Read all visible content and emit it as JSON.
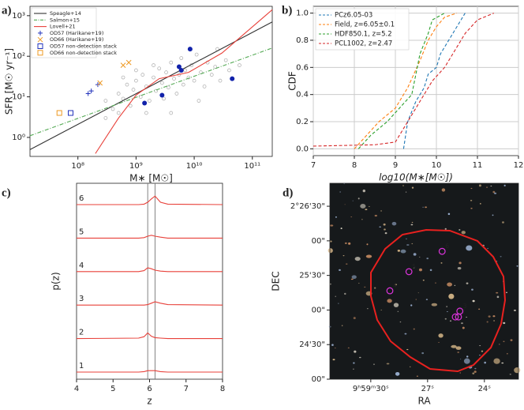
{
  "chart_data": [
    {
      "type": "scatter",
      "title": "a)",
      "xlabel": "M∗ [M☉]",
      "ylabel": "SFR [M☉ yr⁻¹]",
      "xlog": true,
      "ylog": true,
      "xlim": [
        15000000,
        220000000000
      ],
      "ylim": [
        0.34,
        1700
      ],
      "xticks": [
        {
          "value": 100000000,
          "label": "10⁸"
        },
        {
          "value": 1000000000,
          "label": "10⁹"
        },
        {
          "value": 10000000000,
          "label": "10¹⁰"
        },
        {
          "value": 100000000000,
          "label": "10¹¹"
        }
      ],
      "yticks": [
        {
          "value": 1,
          "label": "10⁰"
        },
        {
          "value": 10,
          "label": "10¹"
        },
        {
          "value": 100,
          "label": "10²"
        },
        {
          "value": 1000,
          "label": "10³"
        }
      ],
      "legend": "upper left",
      "series": [
        {
          "color": "#aaaaaa",
          "style": "circle-open",
          "x": [
            300000000,
            400000000,
            500000000,
            600000000,
            700000000,
            800000000,
            900000000,
            1000000000,
            1200000000,
            1300000000,
            1500000000,
            1700000000,
            2000000000,
            2200000000,
            2500000000,
            2800000000,
            3000000000,
            3300000000,
            3600000000,
            4000000000,
            4500000000,
            5000000000,
            5500000000,
            6000000000,
            6500000000,
            7000000000,
            8000000000,
            9000000000,
            10000000000,
            11000000000,
            13000000000,
            15000000000,
            17000000000,
            20000000000,
            23000000000,
            28000000000,
            35000000000,
            40000000000,
            60000000000,
            300000000,
            500000000,
            1500000000,
            2000000000,
            1000000000,
            4000000000,
            25000000000,
            600000000,
            12000000000
          ],
          "values": [
            8,
            5,
            12,
            9,
            20,
            6,
            15,
            25,
            10,
            35,
            18,
            8,
            30,
            14,
            50,
            22,
            9,
            40,
            17,
            70,
            28,
            12,
            35,
            90,
            20,
            45,
            30,
            60,
            25,
            110,
            40,
            18,
            70,
            35,
            55,
            25,
            80,
            45,
            60,
            3,
            4,
            4,
            60,
            45,
            4,
            150,
            30,
            8
          ]
        },
        {
          "name": "Speagle+14",
          "color": "#333333",
          "style": "line",
          "x": [
            15000000,
            220000000000
          ],
          "values": [
            0.5,
            700
          ]
        },
        {
          "name": "Salmon+15",
          "color": "#55aa55",
          "style": "dashdot",
          "x": [
            15000000,
            220000000000
          ],
          "values": [
            1.1,
            160
          ]
        },
        {
          "name": "Lovell+21",
          "color": "#e8413a",
          "style": "line",
          "x": [
            200000000,
            500000000,
            1000000000,
            2500000000,
            8000000000,
            30000000000,
            220000000000
          ],
          "values": [
            0.4,
            3,
            11,
            28,
            40,
            120,
            1400
          ]
        },
        {
          "name": "OD57 (Harikane+19)",
          "color": "#2233bb",
          "style": "plus",
          "x": [
            150000000,
            170000000,
            220000000
          ],
          "values": [
            12,
            14,
            20
          ]
        },
        {
          "name": "OD66 (Harikane+19)",
          "color": "#ee9922",
          "style": "x",
          "x": [
            240000000,
            600000000,
            750000000
          ],
          "values": [
            22,
            60,
            70
          ]
        },
        {
          "name": "OD57 non-detection stack",
          "color": "#2233bb",
          "style": "square-open",
          "x": [
            75000000
          ],
          "values": [
            4
          ]
        },
        {
          "name": "OD66 non-detection stack",
          "color": "#ee9922",
          "style": "square-open",
          "x": [
            48000000
          ],
          "values": [
            4
          ]
        },
        {
          "color": "#1122aa",
          "style": "hexagon",
          "x": [
            1400000000,
            2800000000,
            5500000000,
            6000000000,
            8500000000,
            45000000000
          ],
          "values": [
            7,
            11,
            55,
            45,
            150,
            28
          ]
        }
      ]
    },
    {
      "type": "line",
      "title": "b)",
      "xlabel": "log10(M∗[M☉])",
      "ylabel": "CDF",
      "grid": true,
      "legend": "upper left",
      "xlim": [
        7,
        12
      ],
      "ylim": [
        -0.05,
        1.05
      ],
      "xticks": [
        7,
        8,
        9,
        10,
        11,
        12
      ],
      "yticks": [
        {
          "value": 0,
          "label": "0.0"
        },
        0.2,
        0.4,
        0.6,
        0.8,
        {
          "value": 1,
          "label": "1.0"
        }
      ],
      "series": [
        {
          "name": "PCz6.05-03",
          "color": "#1f77b4",
          "x": [
            9.2,
            9.3,
            9.5,
            9.7,
            9.8,
            10.0,
            10.1,
            10.3,
            10.5,
            10.7
          ],
          "values": [
            0,
            0.2,
            0.35,
            0.45,
            0.55,
            0.6,
            0.7,
            0.8,
            0.9,
            1.0
          ]
        },
        {
          "name": "Field, z=6.05±0.1",
          "color": "#ff7f0e",
          "x": [
            8.0,
            8.3,
            8.6,
            9.0,
            9.3,
            9.6,
            9.8,
            10.0,
            10.2,
            10.5
          ],
          "values": [
            0,
            0.1,
            0.2,
            0.3,
            0.45,
            0.65,
            0.8,
            0.9,
            0.97,
            1.0
          ]
        },
        {
          "name": "HDF850.1, z=5.2",
          "color": "#2ca02c",
          "x": [
            8.1,
            8.4,
            8.8,
            9.1,
            9.4,
            9.6,
            9.8,
            9.9,
            10.2
          ],
          "values": [
            0,
            0.1,
            0.2,
            0.3,
            0.4,
            0.7,
            0.85,
            0.95,
            1.0
          ]
        },
        {
          "name": "PCL1002, z=2.47",
          "color": "#d62728",
          "x": [
            7.0,
            8.5,
            9.0,
            9.3,
            9.6,
            9.9,
            10.2,
            10.4,
            10.7,
            11.0,
            11.4
          ],
          "values": [
            0.02,
            0.03,
            0.05,
            0.2,
            0.35,
            0.5,
            0.6,
            0.7,
            0.85,
            0.95,
            1.0
          ]
        }
      ]
    },
    {
      "type": "ridgeline",
      "title": "c)",
      "xlabel": "z",
      "ylabel": "p(z)",
      "xlim": [
        4,
        8
      ],
      "xticks": [
        4,
        5,
        6,
        7,
        8
      ],
      "vlines": [
        5.95,
        6.15
      ],
      "series": [
        {
          "name": "1",
          "color": "#e8413a",
          "x": [
            4,
            5.7,
            5.85,
            5.95,
            6.05,
            6.15,
            6.3,
            6.5,
            8
          ],
          "values": [
            0,
            0,
            0.01,
            0.03,
            0.03,
            0.03,
            0.01,
            0,
            0
          ]
        },
        {
          "name": "2",
          "color": "#e8413a",
          "x": [
            4,
            5.7,
            5.85,
            5.95,
            6.05,
            6.15,
            6.3,
            6.5,
            8
          ],
          "values": [
            0,
            0.01,
            0.04,
            0.12,
            0.05,
            0.02,
            0.01,
            0,
            0
          ]
        },
        {
          "name": "3",
          "color": "#e8413a",
          "x": [
            4,
            5.7,
            5.85,
            5.95,
            6.05,
            6.15,
            6.3,
            6.5,
            8
          ],
          "values": [
            0,
            0,
            0,
            0.01,
            0.04,
            0.07,
            0.04,
            0.01,
            0
          ]
        },
        {
          "name": "4",
          "color": "#e8413a",
          "x": [
            4,
            5.7,
            5.85,
            5.95,
            6.05,
            6.15,
            6.3,
            6.5,
            8
          ],
          "values": [
            0,
            0,
            0.02,
            0.08,
            0.06,
            0.03,
            0.01,
            0,
            0
          ]
        },
        {
          "name": "5",
          "color": "#e8413a",
          "x": [
            4,
            5.7,
            5.85,
            5.95,
            6.05,
            6.15,
            6.3,
            6.5,
            8
          ],
          "values": [
            0,
            0,
            0.01,
            0.04,
            0.06,
            0.04,
            0.02,
            0,
            0
          ]
        },
        {
          "name": "6",
          "color": "#e8413a",
          "x": [
            4,
            5.7,
            5.85,
            5.95,
            6.05,
            6.15,
            6.3,
            6.5,
            8
          ],
          "values": [
            0,
            0,
            0.01,
            0.05,
            0.12,
            0.18,
            0.05,
            0.01,
            0
          ]
        }
      ]
    },
    {
      "type": "image",
      "title": "d)",
      "xlabel": "RA",
      "ylabel": "DEC",
      "color": "#dd33dd",
      "xlim": [
        149.884,
        149.8425
      ],
      "ylim": [
        2.4,
        2.4472
      ],
      "xticks": [
        {
          "value": 149.875,
          "label": "9ʰ59ᵐ30ˢ"
        },
        {
          "value": 149.8625,
          "label": "27ˢ"
        },
        {
          "value": 149.85,
          "label": "24ˢ"
        }
      ],
      "yticks": [
        {
          "value": 2.441667,
          "label": "2°26'30\""
        },
        {
          "value": 2.433333,
          "label": "00\""
        },
        {
          "value": 2.425,
          "label": "25'30\""
        },
        {
          "value": 2.416667,
          "label": "00\""
        },
        {
          "value": 2.408333,
          "label": "24'30\""
        },
        {
          "value": 2.4,
          "label": "00\""
        }
      ],
      "labels": [
        "1",
        "2",
        "3",
        "4",
        "5",
        "6"
      ],
      "x": [
        149.8564,
        149.8557,
        149.8554,
        149.8708,
        149.8666,
        149.8593
      ],
      "values": [
        2.415,
        2.415,
        2.4164,
        2.4213,
        2.4259,
        2.4308
      ]
    }
  ]
}
